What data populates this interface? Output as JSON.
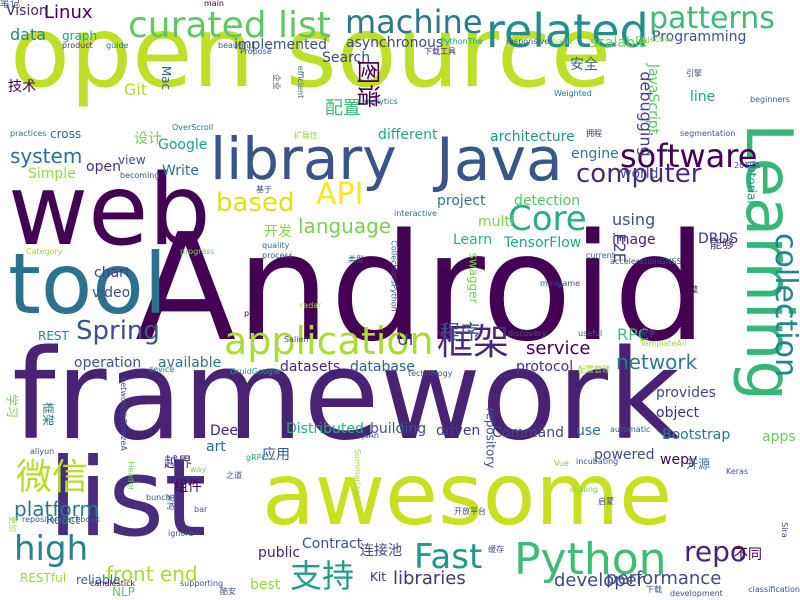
{
  "palette": [
    "#440154",
    "#46327e",
    "#365c8d",
    "#277f8e",
    "#1fa187",
    "#4ac16d",
    "#a0da39",
    "#fde725"
  ],
  "words": [
    {
      "text": "open source",
      "color": "#bddf26"
    },
    {
      "text": "Android",
      "color": "#440154"
    },
    {
      "text": "framework",
      "color": "#482374"
    },
    {
      "text": "awesome",
      "color": "#c8e020"
    },
    {
      "text": "web",
      "color": "#440154"
    },
    {
      "text": "list",
      "color": "#472d7b"
    },
    {
      "text": "library",
      "color": "#3b528b"
    },
    {
      "text": "Java",
      "color": "#39558c"
    },
    {
      "text": "tool",
      "color": "#2c728e"
    },
    {
      "text": "Learning",
      "color": "#35b779"
    },
    {
      "text": "curated list",
      "color": "#5ec962"
    },
    {
      "text": "machine",
      "color": "#2a788e"
    },
    {
      "text": "related",
      "color": "#21908d"
    },
    {
      "text": "patterns",
      "color": "#3fbc73"
    },
    {
      "text": "software",
      "color": "#440154"
    },
    {
      "text": "application",
      "color": "#aadc32"
    },
    {
      "text": "Python",
      "color": "#3dbc74"
    },
    {
      "text": "collection",
      "color": "#25848e"
    },
    {
      "text": "computer",
      "color": "#482878"
    },
    {
      "text": "Core",
      "color": "#27ad81"
    },
    {
      "text": "Spring",
      "color": "#3b528b"
    },
    {
      "text": "high",
      "color": "#26828e"
    },
    {
      "text": "Fast",
      "color": "#1f988b"
    },
    {
      "text": "微信",
      "color": "#b8de29"
    },
    {
      "text": "支持",
      "color": "#1f9e89"
    },
    {
      "text": "框架",
      "color": "#482576"
    },
    {
      "text": "API",
      "color": "#fde725"
    },
    {
      "text": "based",
      "color": "#dde318"
    },
    {
      "text": "language",
      "color": "#7ad151"
    },
    {
      "text": "system",
      "color": "#2d708e"
    },
    {
      "text": "repo",
      "color": "#482475"
    },
    {
      "text": "platform",
      "color": "#2a788e"
    },
    {
      "text": "performance",
      "color": "#3e4a89"
    },
    {
      "text": "service",
      "color": "#440154"
    },
    {
      "text": "network",
      "color": "#277f8e"
    },
    {
      "text": "front end",
      "color": "#a5db36"
    },
    {
      "text": "libraries",
      "color": "#46337f"
    },
    {
      "text": "developer",
      "color": "#3e4989"
    },
    {
      "text": "Linux",
      "color": "#440154"
    },
    {
      "text": "data",
      "color": "#25858e"
    },
    {
      "text": "配置",
      "color": "#3dbc74"
    },
    {
      "text": "project",
      "color": "#2a768e"
    },
    {
      "text": "detection",
      "color": "#52c569"
    },
    {
      "text": "using",
      "color": "#3b528b"
    },
    {
      "text": "UI",
      "color": "#433e85"
    },
    {
      "text": "RPC",
      "color": "#3bbb75"
    },
    {
      "text": "Git",
      "color": "#b5de2b"
    },
    {
      "text": "Google",
      "color": "#1f9e89"
    },
    {
      "text": "Mac",
      "color": "#34608d"
    },
    {
      "text": "graph",
      "color": "#20a386"
    },
    {
      "text": "Vision",
      "color": "#472a7a"
    },
    {
      "text": "asynchronous",
      "color": "#404588"
    },
    {
      "text": "Programming",
      "color": "#3b528b"
    },
    {
      "text": "scalable",
      "color": "#6ccd5a"
    },
    {
      "text": "implemented",
      "color": "#39568c"
    },
    {
      "text": "Search",
      "color": "#3f4788"
    },
    {
      "text": "debugging",
      "color": "#433e85"
    },
    {
      "text": "JavaScript",
      "color": "#5ec962"
    },
    {
      "text": "architecture",
      "color": "#21908d"
    },
    {
      "text": "cross",
      "color": "#31688e"
    },
    {
      "text": "different",
      "color": "#22a785"
    },
    {
      "text": "line",
      "color": "#1fa187"
    },
    {
      "text": "engine",
      "color": "#2b758e"
    },
    {
      "text": "world",
      "color": "#3b528b"
    },
    {
      "text": "tutorial",
      "color": "#1f988b"
    },
    {
      "text": "Write",
      "color": "#2c728e"
    },
    {
      "text": "view",
      "color": "#3a548c"
    },
    {
      "text": "open",
      "color": "#46307e"
    },
    {
      "text": "Simple",
      "color": "#95d840"
    },
    {
      "text": "multi",
      "color": "#7fd34e"
    },
    {
      "text": "image",
      "color": "#481f70"
    },
    {
      "text": "Learn",
      "color": "#2fb47c"
    },
    {
      "text": "TensorFlow",
      "color": "#22a884"
    },
    {
      "text": "F2E",
      "color": "#443983"
    },
    {
      "text": "DRDS",
      "color": "#472f7d"
    },
    {
      "text": "开发",
      "color": "#8bd646"
    },
    {
      "text": "chart",
      "color": "#424086"
    },
    {
      "text": "video",
      "color": "#3c4f8a"
    },
    {
      "text": "REST",
      "color": "#26828e"
    },
    {
      "text": "operation",
      "color": "#3b528b"
    },
    {
      "text": "available",
      "color": "#2c728e"
    },
    {
      "text": "datasets",
      "color": "#482878"
    },
    {
      "text": "database",
      "color": "#34608d"
    },
    {
      "text": "protocol",
      "color": "#46327e"
    },
    {
      "text": "provides",
      "color": "#3f4788"
    },
    {
      "text": "object",
      "color": "#472c7a"
    },
    {
      "text": "Bootstrap",
      "color": "#2a768e"
    },
    {
      "text": "Deep",
      "color": "#482173"
    },
    {
      "text": "art",
      "color": "#2f6c8e"
    },
    {
      "text": "Distributed",
      "color": "#27ad81"
    },
    {
      "text": "building",
      "color": "#39568c"
    },
    {
      "text": "driven",
      "color": "#433e85"
    },
    {
      "text": "Command",
      "color": "#3e4989"
    },
    {
      "text": "use",
      "color": "#2e6f8e"
    },
    {
      "text": "powered",
      "color": "#3d4e8a"
    },
    {
      "text": "wepy",
      "color": "#440154"
    },
    {
      "text": "apps",
      "color": "#6ece58"
    },
    {
      "text": "React",
      "color": "#2a788e"
    },
    {
      "text": "Contract",
      "color": "#3b528b"
    },
    {
      "text": "连接池",
      "color": "#404588"
    },
    {
      "text": "Kit",
      "color": "#482878"
    },
    {
      "text": "best",
      "color": "#95d840"
    },
    {
      "text": "reliable",
      "color": "#2e6d8e"
    },
    {
      "text": "NLP",
      "color": "#5ec962"
    },
    {
      "text": "RESTful",
      "color": "#9bd93c"
    },
    {
      "text": "public",
      "color": "#481f70"
    },
    {
      "text": "应用",
      "color": "#38598c"
    },
    {
      "text": "越界",
      "color": "#46327e"
    },
    {
      "text": "组件",
      "color": "#440154"
    },
    {
      "text": "开源",
      "color": "#2c728e"
    },
    {
      "text": "不同",
      "color": "#440154"
    },
    {
      "text": "能够",
      "color": "#472d7b"
    },
    {
      "text": "安全",
      "color": "#34608d"
    },
    {
      "text": "技术",
      "color": "#440154"
    },
    {
      "text": "设计",
      "color": "#7ad151"
    },
    {
      "text": "图谱",
      "color": "#440154"
    },
    {
      "text": "程序",
      "color": "#3b528b"
    },
    {
      "text": "学习",
      "color": "#7ad151"
    },
    {
      "text": "框架",
      "color": "#2c728e"
    },
    {
      "text": "repository",
      "color": "#3b528b"
    },
    {
      "text": "swagger",
      "color": "#7ad151"
    },
    {
      "text": "guide",
      "color": "#2c728e"
    },
    {
      "text": "beautiful",
      "color": "#34608d"
    },
    {
      "text": "Propose",
      "color": "#3b528b"
    },
    {
      "text": "product",
      "color": "#46327e"
    },
    {
      "text": "main",
      "color": "#440154"
    },
    {
      "text": "PythonThe",
      "color": "#1f9e89"
    },
    {
      "text": "下载工具",
      "color": "#482576"
    },
    {
      "text": "responsive",
      "color": "#3b528b"
    },
    {
      "text": "basic",
      "color": "#a0da39"
    },
    {
      "text": "Objective",
      "color": "#8bd646"
    },
    {
      "text": "引擎",
      "color": "#3b528b"
    },
    {
      "text": "beginners",
      "color": "#34608d"
    },
    {
      "text": "analytics",
      "color": "#2c728e"
    },
    {
      "text": "Weighted",
      "color": "#2c728e"
    },
    {
      "text": "efficient",
      "color": "#31688e"
    },
    {
      "text": "企业",
      "color": "#3b528b"
    },
    {
      "text": "OverScroll",
      "color": "#2c728e"
    },
    {
      "text": "扩展性",
      "color": "#a0da39"
    },
    {
      "text": "拥程",
      "color": "#46327e"
    },
    {
      "text": "segmentation",
      "color": "#3b528b"
    },
    {
      "text": "practices",
      "color": "#2c728e"
    },
    {
      "text": "becoming",
      "color": "#3b528b"
    },
    {
      "text": "基于",
      "color": "#3b528b"
    },
    {
      "text": "interactive",
      "color": "#2c728e"
    },
    {
      "text": "2018A",
      "color": "#3b528b"
    },
    {
      "text": "Category",
      "color": "#a0da39"
    },
    {
      "text": "progress",
      "color": "#7ad151"
    },
    {
      "text": "quality",
      "color": "#2c728e"
    },
    {
      "text": "process",
      "color": "#3b528b"
    },
    {
      "text": "CollectionsPython",
      "color": "#3b528b"
    },
    {
      "text": "current",
      "color": "#34608d"
    },
    {
      "text": "accelerationGNSS",
      "color": "#3b528b"
    },
    {
      "text": "plan",
      "color": "#440154"
    },
    {
      "text": "radar",
      "color": "#a0da39"
    },
    {
      "text": "minigame",
      "color": "#3b528b"
    },
    {
      "text": "完整",
      "color": "#440154"
    },
    {
      "text": "useful",
      "color": "#3b528b"
    },
    {
      "text": "新手",
      "color": "#3b528b"
    },
    {
      "text": "TemplateAll",
      "color": "#a0da39"
    },
    {
      "text": "discovery",
      "color": "#3b528b"
    },
    {
      "text": "device",
      "color": "#2c728e"
    },
    {
      "text": "DruidGoogle",
      "color": "#1f9e89"
    },
    {
      "text": "technology",
      "color": "#3b528b"
    },
    {
      "text": "automatic",
      "color": "#34608d"
    },
    {
      "text": "networksb2blazeA",
      "color": "#3b528b"
    },
    {
      "text": "aliyun",
      "color": "#3b528b"
    },
    {
      "text": "jsAn",
      "color": "#3b528b"
    },
    {
      "text": "Summarized",
      "color": "#a0da39"
    },
    {
      "text": "Vue",
      "color": "#7ad151"
    },
    {
      "text": "incubating",
      "color": "#3b528b"
    },
    {
      "text": "Keras",
      "color": "#3b528b"
    },
    {
      "text": "way",
      "color": "#7ad151"
    },
    {
      "text": "bunch",
      "color": "#3b528b"
    },
    {
      "text": "bar",
      "color": "#3b528b"
    },
    {
      "text": "Header",
      "color": "#7ad151"
    },
    {
      "text": "repositoryFacebook",
      "color": "#3b528b"
    },
    {
      "text": "ignore",
      "color": "#3b528b"
    },
    {
      "text": "candlestick",
      "color": "#440154"
    },
    {
      "text": "supporting",
      "color": "#3b528b"
    },
    {
      "text": "开放平台",
      "color": "#3b528b"
    },
    {
      "text": "development",
      "color": "#3b528b"
    },
    {
      "text": "classification",
      "color": "#3b528b"
    },
    {
      "text": "Sira",
      "color": "#3b528b"
    },
    {
      "text": "scaling",
      "color": "#7ad151"
    },
    {
      "text": "下载",
      "color": "#3b528b"
    },
    {
      "text": "之道",
      "color": "#3b528b"
    },
    {
      "text": "gRPC",
      "color": "#1f9e89"
    },
    {
      "text": "Salien",
      "color": "#3b528b"
    },
    {
      "text": "配置管理",
      "color": "#a0da39"
    },
    {
      "text": "缓存",
      "color": "#3b528b"
    },
    {
      "text": "启蒙",
      "color": "#3b528b"
    },
    {
      "text": "类型",
      "color": "#3b528b"
    },
    {
      "text": "酷安",
      "color": "#3b528b"
    },
    {
      "text": "更加",
      "color": "#a0da39"
    },
    {
      "text": "架构",
      "color": "#3b528b"
    },
    {
      "text": "笔记",
      "color": "#3b528b"
    }
  ]
}
